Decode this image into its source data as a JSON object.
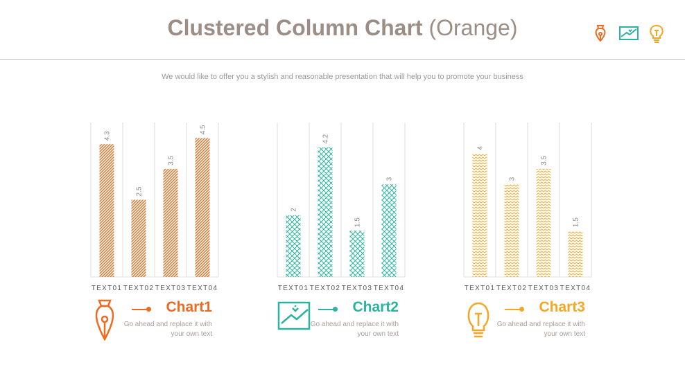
{
  "header": {
    "title_bold": "Clustered Column Chart",
    "title_light": "(Orange)",
    "subtitle": "We would like to offer you a stylish and reasonable presentation that will help you to promote your business"
  },
  "header_icons": [
    "pen-nib-icon",
    "image-icon",
    "lightbulb-icon"
  ],
  "colors": {
    "chart1": "#ee6a1f",
    "chart2": "#2bb3a0",
    "chart3": "#f5a623",
    "title": "#9b8e86"
  },
  "captions": [
    {
      "title": "Chart1",
      "text1": "Go ahead and replace it with",
      "text2": "your own text",
      "icon": "pen-nib-icon"
    },
    {
      "title": "Chart2",
      "text1": "Go ahead and replace it with",
      "text2": "your own text",
      "icon": "image-icon"
    },
    {
      "title": "Chart3",
      "text1": "Go ahead and replace it with",
      "text2": "your own text",
      "icon": "lightbulb-icon"
    }
  ],
  "chart_data": [
    {
      "type": "bar",
      "categories": [
        "TEXT01",
        "TEXT02",
        "TEXT03",
        "TEXT04"
      ],
      "values": [
        4.3,
        2.5,
        3.5,
        4.5
      ],
      "ylim": [
        0,
        5
      ],
      "pattern": "diagonal",
      "grid": "vertical"
    },
    {
      "type": "bar",
      "categories": [
        "TEXT01",
        "TEXT02",
        "TEXT03",
        "TEXT04"
      ],
      "values": [
        2,
        4.2,
        1.5,
        3
      ],
      "ylim": [
        0,
        5
      ],
      "pattern": "crosshatch",
      "grid": "vertical"
    },
    {
      "type": "bar",
      "categories": [
        "TEXT01",
        "TEXT02",
        "TEXT03",
        "TEXT04"
      ],
      "values": [
        4,
        3,
        3.5,
        1.5
      ],
      "ylim": [
        0,
        5
      ],
      "pattern": "zigzag",
      "grid": "vertical"
    }
  ]
}
